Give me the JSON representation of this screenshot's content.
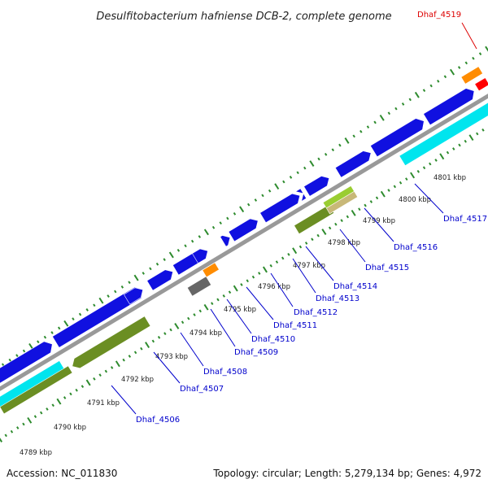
{
  "title": "Desulfitobacterium hafniense DCB-2, complete genome",
  "footer": {
    "accession": "Accession: NC_011830",
    "summary": "Topology: circular; Length: 5,279,134 bp; Genes: 4,972"
  },
  "ticks": [
    "4789 kbp",
    "4790 kbp",
    "4791 kbp",
    "4792 kbp",
    "4793 kbp",
    "4794 kbp",
    "4795 kbp",
    "4796 kbp",
    "4797 kbp",
    "4798 kbp",
    "4799 kbp",
    "4800 kbp",
    "4801 kbp"
  ],
  "gene_labels": [
    {
      "text": "Dhaf_4519",
      "color": "#dd0000"
    },
    {
      "text": "Dhaf_4517",
      "color": "#0000cc"
    },
    {
      "text": "Dhaf_4516",
      "color": "#0000cc"
    },
    {
      "text": "Dhaf_4515",
      "color": "#0000cc"
    },
    {
      "text": "Dhaf_4514",
      "color": "#0000cc"
    },
    {
      "text": "Dhaf_4513",
      "color": "#0000cc"
    },
    {
      "text": "Dhaf_4512",
      "color": "#0000cc"
    },
    {
      "text": "Dhaf_4511",
      "color": "#0000cc"
    },
    {
      "text": "Dhaf_4510",
      "color": "#0000cc"
    },
    {
      "text": "Dhaf_4509",
      "color": "#0000cc"
    },
    {
      "text": "Dhaf_4508",
      "color": "#0000cc"
    },
    {
      "text": "Dhaf_4507",
      "color": "#0000cc"
    },
    {
      "text": "Dhaf_4506",
      "color": "#0000cc"
    }
  ],
  "colors": {
    "forward_cds": "#1010e0",
    "reverse_cds": "#6b8e23",
    "cyan_feature": "#00e5ee",
    "orange_feature": "#ff8c00",
    "red_feature": "#ff0000",
    "gray_feature": "#666666",
    "lightgreen_feature": "#9acd32",
    "tan_feature": "#c8b878",
    "backbone": "#999999",
    "tick_marks": "#2e8b2e"
  }
}
